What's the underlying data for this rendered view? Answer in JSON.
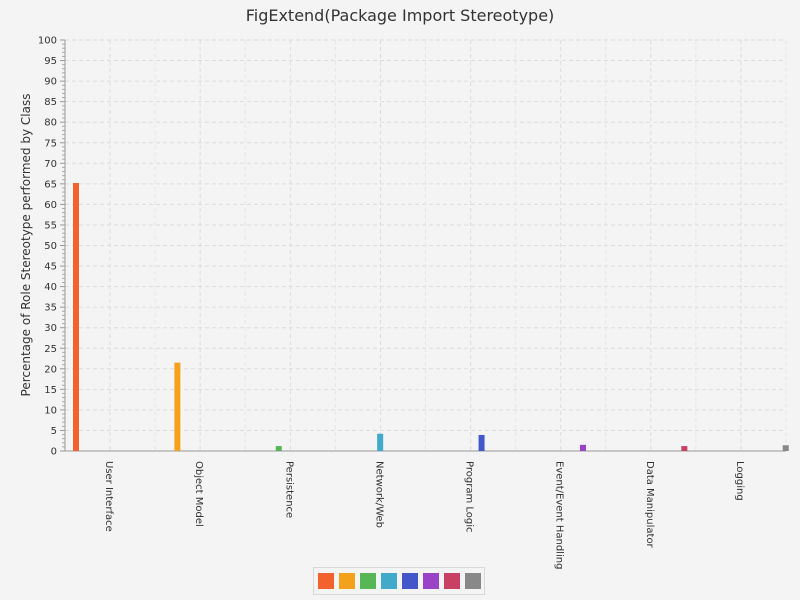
{
  "chart_data": {
    "type": "bar",
    "title": "FigExtend(Package Import Stereotype)",
    "ylabel": "Percentage of Role Stereotype performed by Class",
    "xlabel": "",
    "ylim": [
      0,
      100
    ],
    "y_major_step": 5,
    "grid": true,
    "legend_position": "bottom-center",
    "categories": [
      "User Interface",
      "Object Model",
      "Persistence",
      "Network/Web",
      "Program Logic",
      "Event/Event Handling",
      "Data Manipulator",
      "Logging"
    ],
    "values": [
      65.2,
      21.5,
      1.2,
      4.2,
      3.9,
      1.5,
      1.2,
      1.4
    ],
    "colors": [
      "#f3622d",
      "#f4a11c",
      "#57b757",
      "#41a9c9",
      "#4258c9",
      "#9a42c8",
      "#c84164",
      "#888888"
    ]
  }
}
